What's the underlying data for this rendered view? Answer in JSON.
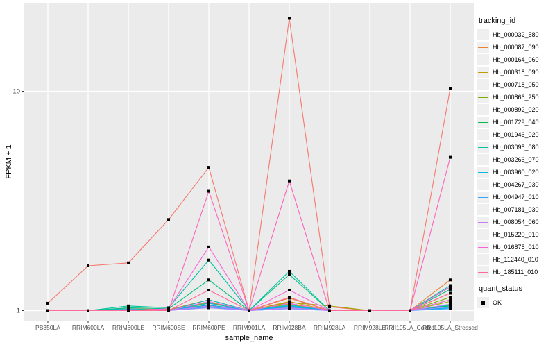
{
  "chart_data": {
    "type": "line",
    "title": "",
    "xlabel": "sample_name",
    "ylabel": "FPKM + 1",
    "y_scale": "log10",
    "y_ticks": [
      1,
      10
    ],
    "y_minor_ticks": [
      3.162
    ],
    "ylim": [
      0.9,
      25
    ],
    "grid": true,
    "legend_position": "right",
    "marker": {
      "shape": "square",
      "color": "#000000",
      "meaning": "quant_status OK"
    },
    "colors": {
      "panel_bg": "#EBEBEB",
      "grid": "#FFFFFF",
      "axis_text": "#4D4D4D",
      "tick_mark": "#333333",
      "marker": "#000000"
    },
    "categories": [
      "PB350LA",
      "RRIM600LA",
      "RRIM600LE",
      "RRIM600SE",
      "RRIM600PE",
      "RRIM901LA",
      "RRIM928BA",
      "RRIM928LA",
      "RRIM928LE",
      "RRII105LA_Control",
      "RRII105LA_Stressed"
    ],
    "series": [
      {
        "name": "Hb_000032_580",
        "color": "#F8766D",
        "values": [
          1.08,
          1.6,
          1.65,
          2.6,
          4.5,
          1.0,
          21.5,
          1.04,
          1.0,
          1.0,
          10.3
        ]
      },
      {
        "name": "Hb_000087_090",
        "color": "#EA8331",
        "values": [
          1.0,
          1.0,
          1.02,
          1.01,
          1.12,
          1.0,
          1.14,
          1.0,
          1.0,
          1.0,
          1.38
        ]
      },
      {
        "name": "Hb_000164_060",
        "color": "#D89000",
        "values": [
          1.0,
          1.0,
          1.01,
          1.0,
          1.08,
          1.0,
          1.1,
          1.0,
          1.0,
          1.0,
          1.2
        ]
      },
      {
        "name": "Hb_000318_090",
        "color": "#C09B00",
        "values": [
          1.0,
          1.0,
          1.0,
          1.01,
          1.06,
          1.0,
          1.07,
          1.0,
          1.0,
          1.0,
          1.12
        ]
      },
      {
        "name": "Hb_000718_050",
        "color": "#A3A500",
        "values": [
          1.0,
          1.0,
          1.02,
          1.0,
          1.09,
          1.0,
          1.09,
          1.05,
          1.0,
          1.0,
          1.1
        ]
      },
      {
        "name": "Hb_000866_250",
        "color": "#7CAE00",
        "values": [
          1.0,
          1.0,
          1.0,
          1.0,
          1.05,
          1.0,
          1.05,
          1.0,
          1.0,
          1.0,
          1.15
        ]
      },
      {
        "name": "Hb_000892_020",
        "color": "#39B600",
        "values": [
          1.0,
          1.0,
          1.0,
          1.0,
          1.04,
          1.0,
          1.03,
          1.0,
          1.0,
          1.0,
          1.06
        ]
      },
      {
        "name": "Hb_001729_040",
        "color": "#00BB4E",
        "values": [
          1.0,
          1.0,
          1.01,
          1.0,
          1.06,
          1.0,
          1.04,
          1.0,
          1.0,
          1.0,
          1.05
        ]
      },
      {
        "name": "Hb_001946_020",
        "color": "#00BF7D",
        "values": [
          1.0,
          1.0,
          1.03,
          1.02,
          1.38,
          1.0,
          1.46,
          1.0,
          1.0,
          1.0,
          1.25
        ]
      },
      {
        "name": "Hb_003095_080",
        "color": "#00C1A3",
        "values": [
          1.0,
          1.0,
          1.05,
          1.03,
          1.7,
          1.0,
          1.51,
          1.0,
          1.0,
          1.0,
          1.3
        ]
      },
      {
        "name": "Hb_003266_070",
        "color": "#00BFC4",
        "values": [
          1.0,
          1.0,
          1.02,
          1.0,
          1.12,
          1.0,
          1.06,
          1.0,
          1.0,
          1.0,
          1.06
        ]
      },
      {
        "name": "Hb_003960_020",
        "color": "#00BAE0",
        "values": [
          1.0,
          1.0,
          1.01,
          1.0,
          1.08,
          1.0,
          1.05,
          1.0,
          1.0,
          1.0,
          1.04
        ]
      },
      {
        "name": "Hb_004267_030",
        "color": "#00B0F6",
        "values": [
          1.0,
          1.0,
          1.0,
          1.0,
          1.06,
          1.0,
          1.04,
          1.0,
          1.0,
          1.0,
          1.03
        ]
      },
      {
        "name": "Hb_004947_010",
        "color": "#35A2FF",
        "values": [
          1.0,
          1.0,
          1.0,
          1.0,
          1.04,
          1.0,
          1.02,
          1.0,
          1.0,
          1.0,
          1.02
        ]
      },
      {
        "name": "Hb_007181_030",
        "color": "#9590FF",
        "values": [
          1.0,
          1.0,
          1.0,
          1.0,
          1.03,
          1.0,
          1.02,
          1.0,
          1.0,
          1.0,
          1.04
        ]
      },
      {
        "name": "Hb_008054_060",
        "color": "#C77CFF",
        "values": [
          1.0,
          1.0,
          1.0,
          1.0,
          1.05,
          1.0,
          1.03,
          1.0,
          1.0,
          1.0,
          1.07
        ]
      },
      {
        "name": "Hb_015220_010",
        "color": "#E76BF3",
        "values": [
          1.0,
          1.0,
          1.01,
          1.0,
          1.1,
          1.0,
          1.08,
          1.0,
          1.0,
          1.0,
          1.12
        ]
      },
      {
        "name": "Hb_016875_010",
        "color": "#FA62DB",
        "values": [
          1.0,
          1.0,
          1.0,
          1.02,
          1.95,
          1.0,
          1.24,
          1.0,
          1.0,
          1.0,
          1.28
        ]
      },
      {
        "name": "Hb_112440_010",
        "color": "#FF62BC",
        "values": [
          1.0,
          1.0,
          1.0,
          1.0,
          3.5,
          1.0,
          3.9,
          1.0,
          1.0,
          1.0,
          5.0
        ]
      },
      {
        "name": "Hb_185111_010",
        "color": "#FF6A98",
        "values": [
          1.0,
          1.0,
          1.0,
          1.0,
          1.24,
          1.0,
          1.15,
          1.0,
          1.0,
          1.0,
          1.2
        ]
      }
    ]
  },
  "legend": {
    "color_title": "tracking_id",
    "shape_title": "quant_status",
    "shape_items": [
      {
        "label": "OK"
      }
    ]
  }
}
